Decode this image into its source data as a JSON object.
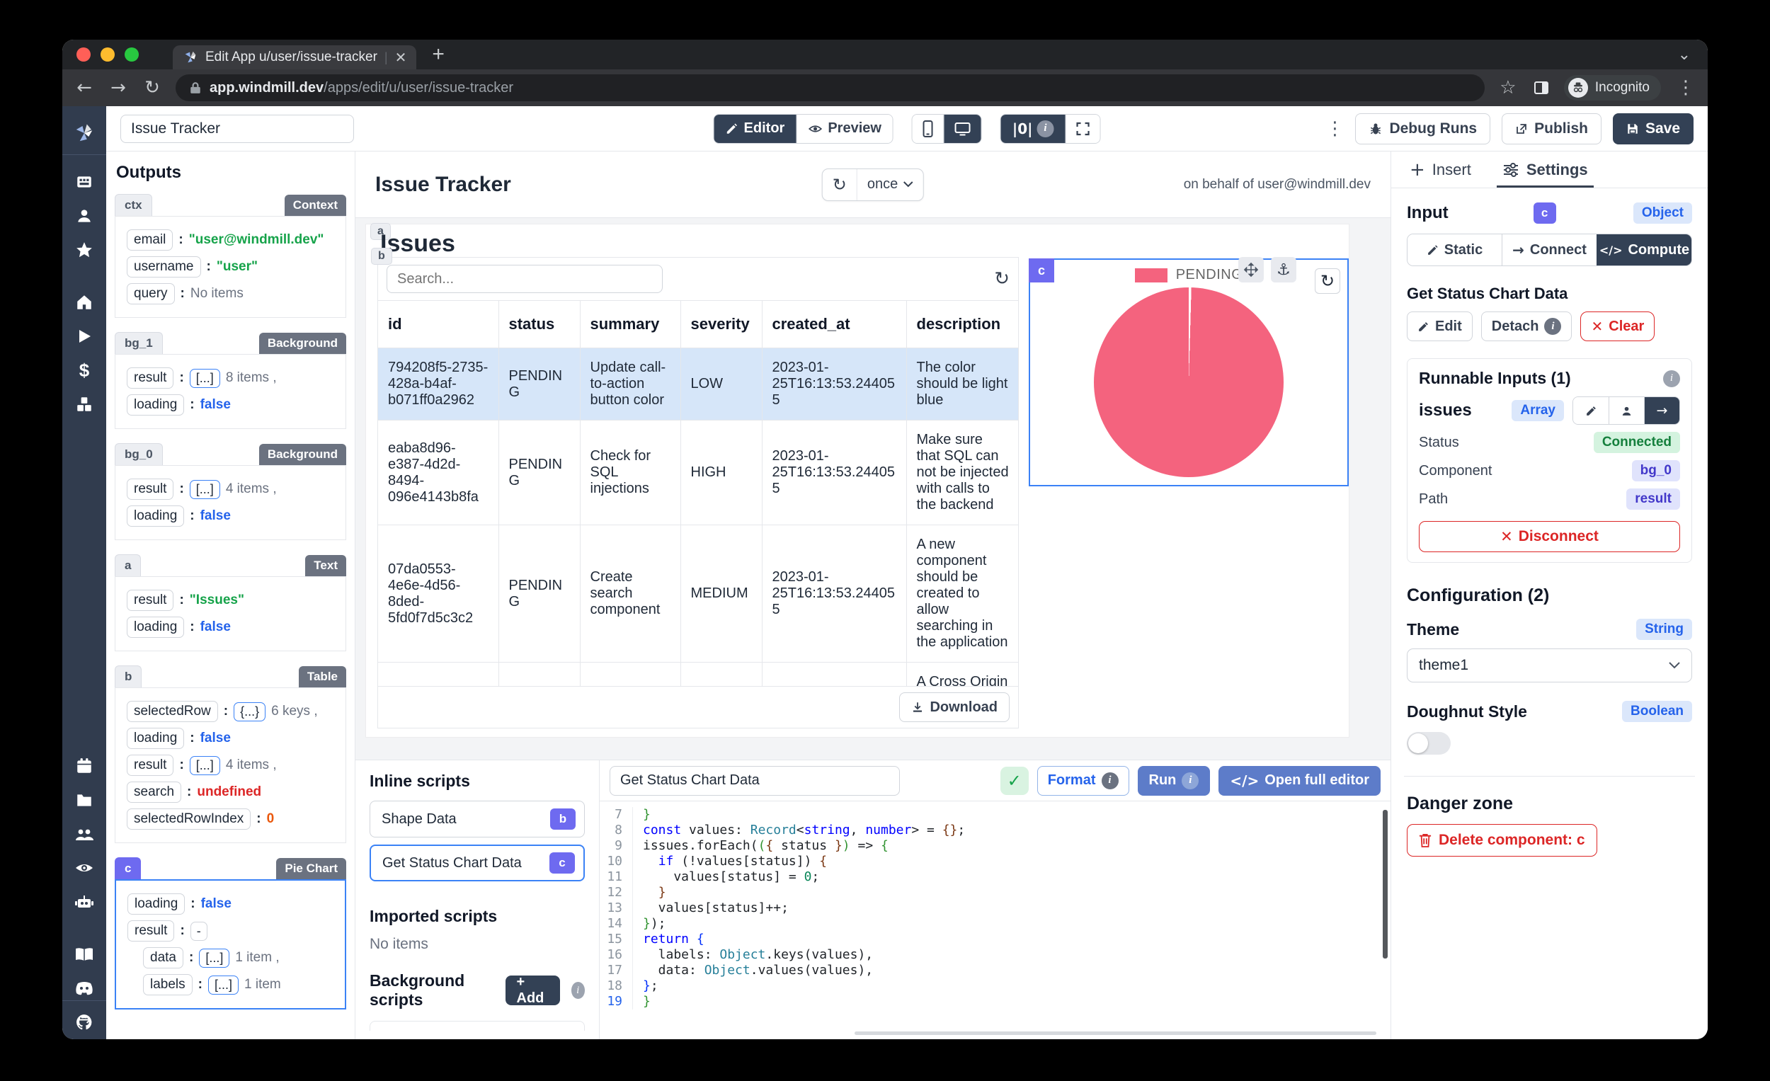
{
  "chrome": {
    "tab_title": "Edit App u/user/issue-tracker",
    "url_host": "app.windmill.dev",
    "url_path": "/apps/edit/u/user/issue-tracker",
    "incognito_label": "Incognito"
  },
  "toolbar": {
    "app_name": "Issue Tracker",
    "editor_label": "Editor",
    "preview_label": "Preview",
    "debug_runs_label": "Debug Runs",
    "publish_label": "Publish",
    "save_label": "Save"
  },
  "outputs": {
    "title": "Outputs",
    "cards": [
      {
        "id": "ctx",
        "type": "Context",
        "rows": [
          {
            "key": "email",
            "vc": "string",
            "value": "\"user@windmill.dev\""
          },
          {
            "key": "username",
            "vc": "string",
            "value": "\"user\""
          },
          {
            "key": "query",
            "vc": "muted",
            "value": "No items"
          }
        ]
      },
      {
        "id": "bg_1",
        "type": "Background",
        "rows": [
          {
            "key": "result",
            "chip": "[...]",
            "vc": "muted",
            "value": "8 items ,"
          },
          {
            "key": "loading",
            "vc": "bool",
            "value": "false"
          }
        ]
      },
      {
        "id": "bg_0",
        "type": "Background",
        "rows": [
          {
            "key": "result",
            "chip": "[...]",
            "vc": "muted",
            "value": "4 items ,"
          },
          {
            "key": "loading",
            "vc": "bool",
            "value": "false"
          }
        ]
      },
      {
        "id": "a",
        "type": "Text",
        "rows": [
          {
            "key": "result",
            "vc": "string",
            "value": "\"Issues\""
          },
          {
            "key": "loading",
            "vc": "bool",
            "value": "false"
          }
        ]
      },
      {
        "id": "b",
        "type": "Table",
        "rows": [
          {
            "key": "selectedRow",
            "chip": "{...}",
            "vc": "muted",
            "value": "6 keys ,"
          },
          {
            "key": "loading",
            "vc": "bool",
            "value": "false"
          },
          {
            "key": "result",
            "chip": "[...]",
            "vc": "muted",
            "value": "4 items ,"
          },
          {
            "key": "search",
            "vc": "err",
            "value": "undefined"
          },
          {
            "key": "selectedRowIndex",
            "vc": "num",
            "value": "0"
          }
        ]
      },
      {
        "id": "c",
        "type": "Pie Chart",
        "rows": [
          {
            "key": "loading",
            "vc": "bool",
            "value": "false"
          },
          {
            "key": "result",
            "chip": "-",
            "vc": "muted",
            "value": ""
          },
          {
            "key": "data",
            "chip": "[...]",
            "vc": "muted",
            "value": "1 item ,"
          },
          {
            "key": "labels",
            "chip": "[...]",
            "vc": "muted",
            "value": "1 item"
          }
        ]
      }
    ]
  },
  "canvas": {
    "title": "Issue Tracker",
    "refresh_mode": "once",
    "behalf": "on behalf of user@windmill.dev",
    "heading": "Issues",
    "heading_badge": "a",
    "table": {
      "badge": "b",
      "search_placeholder": "Search...",
      "columns": [
        "id",
        "status",
        "summary",
        "severity",
        "created_at",
        "description"
      ],
      "rows": [
        [
          "794208f5-2735-428a-b4af-b071ff0a2962",
          "PENDING",
          "Update call-to-action button color",
          "LOW",
          "2023-01-25T16:13:53.244055",
          "The color should be light blue"
        ],
        [
          "eaba8d96-e387-4d2d-8494-096e4143b8fa",
          "PENDING",
          "Check for SQL injections",
          "HIGH",
          "2023-01-25T16:13:53.244055",
          "Make sure that SQL can not be injected with calls to the backend"
        ],
        [
          "07da0553-4e6e-4d56-8ded-5fd0f7d5c3c2",
          "PENDING",
          "Create search component",
          "MEDIUM",
          "2023-01-25T16:13:53.244055",
          "A new component should be created to allow searching in the application"
        ]
      ],
      "partial_description": "A Cross Origin",
      "download_label": "Download"
    },
    "pie": {
      "badge": "c",
      "legend": "PENDING",
      "color": "#f4637e",
      "chart_data": {
        "type": "pie",
        "labels": [
          "PENDING"
        ],
        "values": [
          4
        ],
        "legend_position": "top"
      }
    }
  },
  "scripts_panel": {
    "inline_title": "Inline scripts",
    "items": [
      {
        "label": "Shape Data",
        "badge": "b"
      },
      {
        "label": "Get Status Chart Data",
        "badge": "c"
      }
    ],
    "imported_title": "Imported scripts",
    "imported_empty": "No items",
    "background_title": "Background scripts",
    "add_label": "+ Add"
  },
  "editor": {
    "name_value": "Get Status Chart Data",
    "format_label": "Format",
    "run_label": "Run",
    "open_full_label": "Open full editor",
    "code_lines": [
      {
        "n": 7,
        "tokens": [
          [
            "b2",
            "}"
          ]
        ]
      },
      {
        "n": 8,
        "tokens": [
          [
            "k",
            "const"
          ],
          [
            "d",
            " values: "
          ],
          [
            "t",
            "Record"
          ],
          [
            "d",
            "<"
          ],
          [
            "k",
            "string"
          ],
          [
            "d",
            ", "
          ],
          [
            "k",
            "number"
          ],
          [
            "d",
            "> = "
          ],
          [
            "b3",
            "{}"
          ],
          [
            "d",
            ";"
          ]
        ]
      },
      {
        "n": 9,
        "tokens": [
          [
            "d",
            "issues.forEach("
          ],
          [
            "b2",
            "("
          ],
          [
            "b3",
            "{"
          ],
          [
            "d",
            " status "
          ],
          [
            "b3",
            "}"
          ],
          [
            "b2",
            ")"
          ],
          [
            "d",
            " => "
          ],
          [
            "b2",
            "{"
          ]
        ]
      },
      {
        "n": 10,
        "tokens": [
          [
            "d",
            "  "
          ],
          [
            "k",
            "if"
          ],
          [
            "d",
            " (!values[status]) "
          ],
          [
            "b3",
            "{"
          ]
        ]
      },
      {
        "n": 11,
        "tokens": [
          [
            "d",
            "    values[status] = "
          ],
          [
            "n",
            "0"
          ],
          [
            "d",
            ";"
          ]
        ]
      },
      {
        "n": 12,
        "tokens": [
          [
            "d",
            "  "
          ],
          [
            "b3",
            "}"
          ]
        ]
      },
      {
        "n": 13,
        "tokens": [
          [
            "d",
            "  values[status]++;"
          ]
        ]
      },
      {
        "n": 14,
        "tokens": [
          [
            "b2",
            "}"
          ],
          [
            "d",
            ");"
          ]
        ]
      },
      {
        "n": 15,
        "tokens": [
          [
            "k",
            "return"
          ],
          [
            "d",
            " "
          ],
          [
            "b1",
            "{"
          ]
        ]
      },
      {
        "n": 16,
        "tokens": [
          [
            "d",
            "  labels: "
          ],
          [
            "t",
            "Object"
          ],
          [
            "d",
            ".keys(values),"
          ]
        ]
      },
      {
        "n": 17,
        "tokens": [
          [
            "d",
            "  data: "
          ],
          [
            "t",
            "Object"
          ],
          [
            "d",
            ".values(values),"
          ]
        ]
      },
      {
        "n": 18,
        "tokens": [
          [
            "b1",
            "}"
          ],
          [
            "d",
            ";"
          ]
        ]
      },
      {
        "n": 19,
        "active": true,
        "tokens": [
          [
            "b2",
            "}"
          ]
        ]
      }
    ]
  },
  "right": {
    "tabs": {
      "insert": "Insert",
      "settings": "Settings"
    },
    "input": {
      "label": "Input",
      "badge": "c",
      "type": "Object",
      "static_label": "Static",
      "connect_label": "Connect",
      "compute_label": "Compute"
    },
    "source": {
      "title": "Get Status Chart Data",
      "edit": "Edit",
      "detach": "Detach",
      "clear": "Clear"
    },
    "runnable": {
      "title": "Runnable Inputs (1)",
      "name": "issues",
      "type": "Array",
      "status_label": "Status",
      "status": "Connected",
      "component_label": "Component",
      "component": "bg_0",
      "path_label": "Path",
      "path": "result",
      "disconnect": "Disconnect"
    },
    "config": {
      "title": "Configuration (2)",
      "theme_label": "Theme",
      "theme_type": "String",
      "theme_value": "theme1",
      "doughnut_label": "Doughnut Style",
      "doughnut_type": "Boolean"
    },
    "danger": {
      "title": "Danger zone",
      "delete": "Delete component: c"
    }
  }
}
